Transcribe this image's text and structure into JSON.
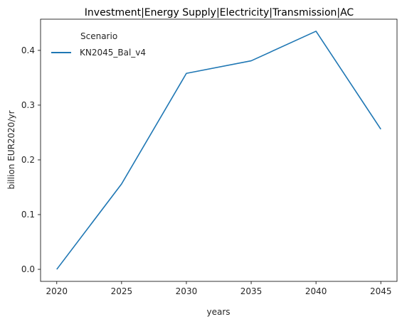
{
  "chart_data": {
    "type": "line",
    "title": "Investment|Energy Supply|Electricity|Transmission|AC",
    "xlabel": "years",
    "ylabel": "billion EUR2020/yr",
    "x": [
      2020,
      2025,
      2030,
      2035,
      2040,
      2045
    ],
    "xticks": [
      "2020",
      "2025",
      "2030",
      "2035",
      "2040",
      "2045"
    ],
    "yticks": [
      "0.0",
      "0.1",
      "0.2",
      "0.3",
      "0.4"
    ],
    "ylim": [
      -0.022,
      0.457
    ],
    "xlim": [
      2018.75,
      2046.25
    ],
    "legend": {
      "title": "Scenario",
      "placement": "top-left"
    },
    "series": [
      {
        "name": "KN2045_Bal_v4",
        "color": "#1f77b4",
        "values": [
          0.0,
          0.156,
          0.358,
          0.381,
          0.435,
          0.256
        ]
      }
    ],
    "grid": false
  }
}
